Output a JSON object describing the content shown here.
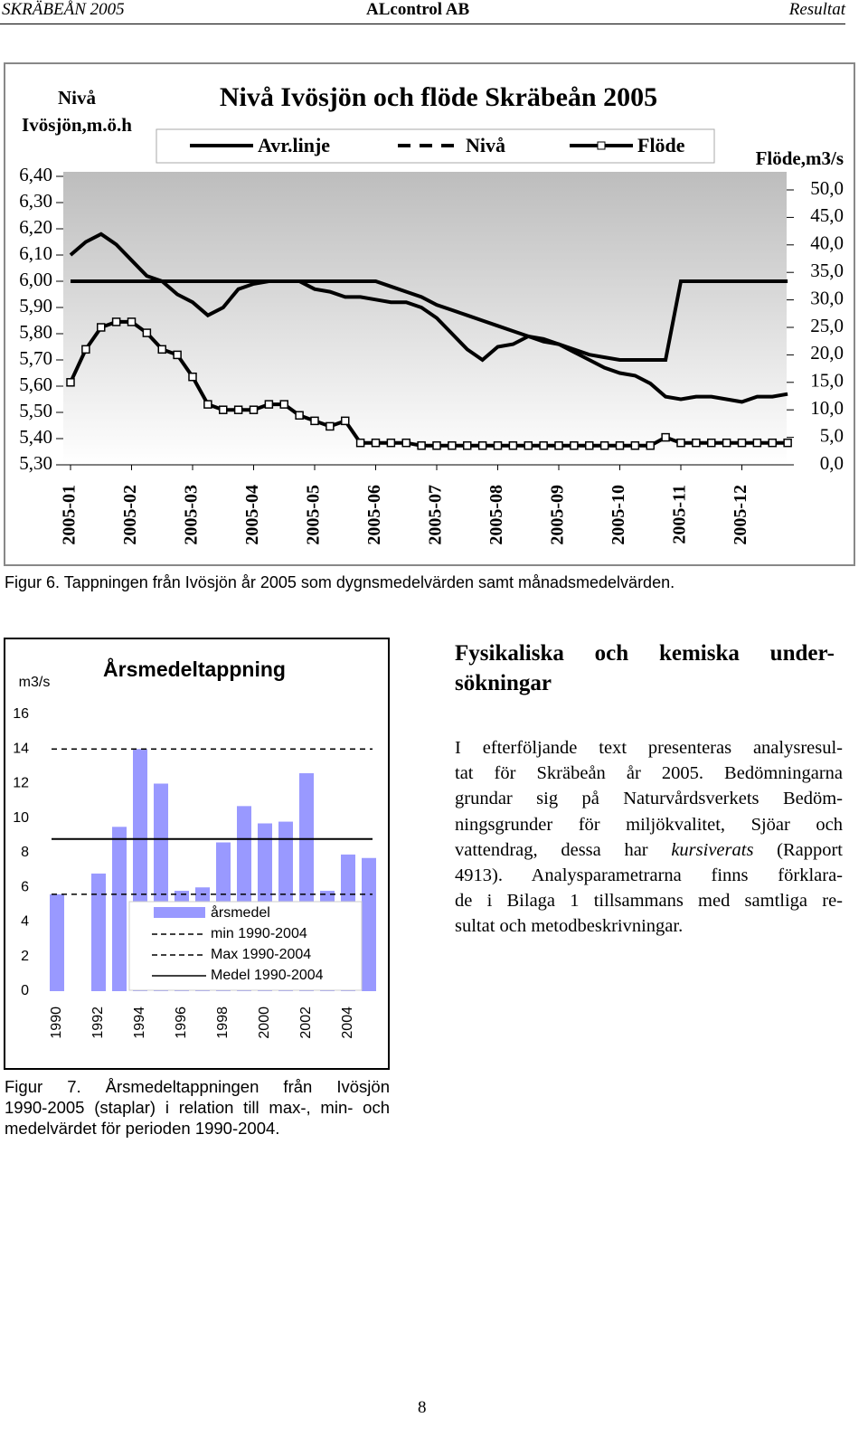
{
  "header": {
    "left": "SKRÄBEÅN 2005",
    "center": "ALcontrol AB",
    "right": "Resultat"
  },
  "chart_data": [
    {
      "type": "line",
      "title": "Nivå Ivösjön och flöde Skräbeån 2005",
      "ylabel": [
        "Nivå",
        "Ivösjön,m.ö.h"
      ],
      "y2label": "Flöde,m3/s",
      "categories": [
        "2005-01",
        null,
        null,
        null,
        "2005-02",
        null,
        null,
        null,
        "2005-03",
        null,
        null,
        null,
        "2005-04",
        null,
        null,
        null,
        "2005-05",
        null,
        null,
        null,
        "2005-06",
        null,
        null,
        null,
        "2005-07",
        null,
        null,
        null,
        "2005-08",
        null,
        null,
        null,
        "2005-09",
        null,
        null,
        null,
        "2005-10",
        null,
        null,
        null,
        "2005-11",
        null,
        null,
        null,
        "2005-12",
        null,
        null,
        null
      ],
      "ylim": [
        5.3,
        6.4
      ],
      "yticks": [
        {
          "value": 5.3,
          "label": "5,30"
        },
        {
          "value": 5.4,
          "label": "5,40"
        },
        {
          "value": 5.5,
          "label": "5,50"
        },
        {
          "value": 5.6,
          "label": "5,60"
        },
        {
          "value": 5.7,
          "label": "5,70"
        },
        {
          "value": 5.8,
          "label": "5,80"
        },
        {
          "value": 5.9,
          "label": "5,90"
        },
        {
          "value": 6.0,
          "label": "6,00"
        },
        {
          "value": 6.1,
          "label": "6,10"
        },
        {
          "value": 6.2,
          "label": "6,20"
        },
        {
          "value": 6.3,
          "label": "6,30"
        },
        {
          "value": 6.4,
          "label": "6,40"
        }
      ],
      "y2lim": [
        0,
        50
      ],
      "y2ticks": [
        {
          "value": 0,
          "label": "0,0"
        },
        {
          "value": 5,
          "label": "5,0"
        },
        {
          "value": 10,
          "label": "10,0"
        },
        {
          "value": 15,
          "label": "15,0"
        },
        {
          "value": 20,
          "label": "20,0"
        },
        {
          "value": 25,
          "label": "25,0"
        },
        {
          "value": 30,
          "label": "30,0"
        },
        {
          "value": 35,
          "label": "35,0"
        },
        {
          "value": 40,
          "label": "40,0"
        },
        {
          "value": 45,
          "label": "45,0"
        },
        {
          "value": 50,
          "label": "50,0"
        }
      ],
      "series": [
        {
          "name": "Avr.linje",
          "color": "#000000",
          "style": "solid",
          "values": [
            6.0,
            6.0,
            6.0,
            6.0,
            6.0,
            6.0,
            6.0,
            6.0,
            6.0,
            6.0,
            6.0,
            6.0,
            6.0,
            6.0,
            6.0,
            6.0,
            6.0,
            6.0,
            6.0,
            6.0,
            6.0,
            5.98,
            5.96,
            5.94,
            5.91,
            5.89,
            5.87,
            5.85,
            5.83,
            5.81,
            5.79,
            5.77,
            5.76,
            5.74,
            5.72,
            5.71,
            5.7,
            5.7,
            5.7,
            5.7,
            6.0,
            6.0,
            6.0,
            6.0,
            6.0,
            6.0,
            6.0,
            6.0
          ]
        },
        {
          "name": "Nivå",
          "color": "#000000",
          "style": "dashed",
          "values": [
            6.1,
            6.15,
            6.18,
            6.14,
            6.08,
            6.02,
            6.0,
            5.95,
            5.92,
            5.87,
            5.9,
            5.97,
            5.99,
            6.0,
            6.0,
            6.0,
            5.97,
            5.96,
            5.94,
            5.94,
            5.93,
            5.92,
            5.92,
            5.9,
            5.86,
            5.8,
            5.74,
            5.7,
            5.75,
            5.76,
            5.79,
            5.78,
            5.76,
            5.73,
            5.7,
            5.67,
            5.65,
            5.64,
            5.61,
            5.56,
            5.55,
            5.56,
            5.56,
            5.55,
            5.54,
            5.56,
            5.56,
            5.57
          ]
        },
        {
          "name": "Flöde",
          "color": "#000000",
          "style": "marker",
          "axis": "y2",
          "values": [
            15,
            21,
            25,
            26,
            26,
            24,
            21,
            20,
            16,
            11,
            10,
            10,
            10,
            11,
            11,
            9,
            8,
            7,
            8,
            4,
            4,
            4,
            4,
            3.5,
            3.5,
            3.5,
            3.5,
            3.5,
            3.5,
            3.5,
            3.5,
            3.5,
            3.5,
            3.5,
            3.5,
            3.5,
            3.5,
            3.5,
            3.5,
            5,
            4,
            4,
            4,
            4,
            4,
            4,
            4,
            4
          ]
        }
      ]
    },
    {
      "type": "bar",
      "title": "Årsmedeltappning",
      "ylabel": "m3/s",
      "categories": [
        "1990",
        null,
        "1992",
        null,
        "1994",
        null,
        "1996",
        null,
        "1998",
        null,
        "2000",
        null,
        "2002",
        null,
        "2004",
        null
      ],
      "ylim": [
        0,
        16
      ],
      "yticks": [
        0,
        2,
        4,
        6,
        8,
        10,
        12,
        14,
        16
      ],
      "series": [
        {
          "name": "årsmedel",
          "color": "#9999ff",
          "values": [
            5.6,
            null,
            6.8,
            9.5,
            14,
            12,
            5.8,
            6,
            8.6,
            10.7,
            9.7,
            9.8,
            12.6,
            5.8,
            7.9,
            7.7
          ]
        }
      ],
      "lines": [
        {
          "name": "min 1990-2004",
          "value": 5.6,
          "style": "dotted"
        },
        {
          "name": "Max 1990-2004",
          "value": 14,
          "style": "dotted"
        },
        {
          "name": "Medel 1990-2004",
          "value": 8.8,
          "style": "solid"
        }
      ]
    }
  ],
  "captions": {
    "figure6": "Figur 6. Tappningen från Ivösjön år 2005 som dygnsmedelvärden samt månadsmedelvärden.",
    "figure7": [
      "Figur 7. Årsmedeltappningen från Ivösjön",
      "1990-2005 (staplar) i relation till max-, min- och",
      "medelvärdet för perioden 1990-2004."
    ]
  },
  "section": {
    "heading": [
      "Fysikaliska och kemiska under-",
      "sökningar"
    ],
    "paragraph": [
      [
        "I efterföljande text presenteras analysresul-"
      ],
      [
        "tat för Skräbeån år 2005. Bedömningarna"
      ],
      [
        "grundar sig på Naturvårdsverkets Bedöm-"
      ],
      [
        "ningsgrunder för miljökvalitet, Sjöar och"
      ],
      [
        "vattendrag, dessa har ",
        "kursiverats",
        " (Rapport"
      ],
      [
        "4913). Analysparametrarna finns förklara-"
      ],
      [
        "de i Bilaga 1 tillsammans med samtliga re-"
      ],
      [
        "sultat och metodbeskrivningar."
      ]
    ]
  },
  "page_number": "8"
}
